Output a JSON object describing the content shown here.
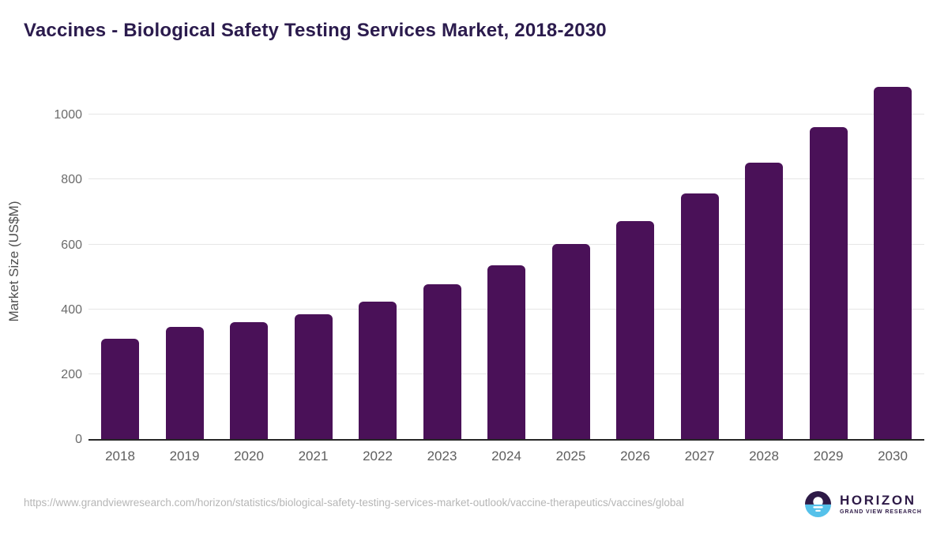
{
  "header": {
    "title": "Vaccines - Biological Safety Testing Services Market, 2018-2030"
  },
  "chart_data": {
    "type": "bar",
    "title": "Vaccines - Biological Safety Testing Services Market, 2018-2030",
    "categories": [
      "2018",
      "2019",
      "2020",
      "2021",
      "2022",
      "2023",
      "2024",
      "2025",
      "2026",
      "2027",
      "2028",
      "2029",
      "2030"
    ],
    "values": [
      310,
      345,
      360,
      384,
      424,
      478,
      535,
      601,
      671,
      757,
      853,
      961,
      1085
    ],
    "xlabel": "",
    "ylabel": "Market Size (US$M)",
    "ylim": [
      0,
      1115
    ],
    "yticks": [
      0,
      200,
      400,
      600,
      800,
      1000
    ],
    "grid": "horizontal-only",
    "legend": "none",
    "bar_color": "#4a1158"
  },
  "footer": {
    "source_url": "https://www.grandviewresearch.com/horizon/statistics/biological-safety-testing-services-market-outlook/vaccine-therapeutics/vaccines/global",
    "logo": {
      "brand": "HORIZON",
      "tagline": "GRAND VIEW RESEARCH"
    }
  },
  "colors": {
    "bar": "#4a1158",
    "title_text": "#2b1b4d",
    "axis_text": "#6b6b6b",
    "grid_line": "#e6e6e6",
    "baseline": "#262626",
    "url_text": "#b6b6b6",
    "logo_purple": "#2e1a47",
    "logo_blue": "#55c1ea"
  }
}
